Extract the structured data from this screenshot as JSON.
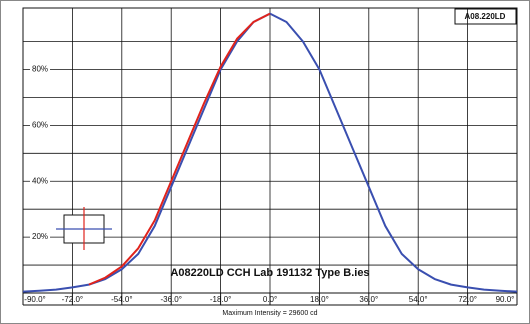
{
  "chart_data": {
    "type": "line",
    "title": "A08220LD CCH Lab 191132 Type B.ies",
    "badge": "A08.220LD",
    "x_label": "Maximum Intensity = 29600 cd",
    "x": [
      -90,
      -84,
      -78,
      -72,
      -66,
      -60,
      -54,
      -48,
      -42,
      -36,
      -30,
      -24,
      -18,
      -12,
      -6,
      0,
      6,
      12,
      18,
      24,
      30,
      36,
      42,
      48,
      54,
      60,
      66,
      72,
      78,
      84,
      90
    ],
    "series": [
      {
        "name": "Horizontal",
        "color": "#3a4fb0",
        "values": [
          0.5,
          0.8,
          1.2,
          2,
          3,
          5,
          8.5,
          14,
          24,
          38,
          52,
          66,
          80,
          90,
          97,
          100,
          97,
          90,
          80,
          66,
          52,
          38,
          24,
          14,
          8.5,
          5,
          3,
          2,
          1.2,
          0.8,
          0.5
        ]
      },
      {
        "name": "Vertical",
        "color": "#e0231c",
        "values": [
          null,
          null,
          null,
          null,
          3,
          5.5,
          9.5,
          16,
          26,
          40,
          54,
          68,
          81,
          91,
          97,
          100,
          null,
          null,
          null,
          null,
          null,
          null,
          null,
          null,
          null,
          null,
          null,
          null,
          null,
          null,
          null
        ]
      }
    ],
    "xlim": [
      -90,
      90
    ],
    "ylim": [
      0,
      102
    ],
    "xticks": [
      {
        "value": -90,
        "label": "-90.0°"
      },
      {
        "value": -72,
        "label": "-72.0°"
      },
      {
        "value": -54,
        "label": "-54.0°"
      },
      {
        "value": -36,
        "label": "-36.0°"
      },
      {
        "value": -18,
        "label": "-18.0°"
      },
      {
        "value": 0,
        "label": "0.0°"
      },
      {
        "value": 18,
        "label": "18.0°"
      },
      {
        "value": 36,
        "label": "36.0°"
      },
      {
        "value": 54,
        "label": "54.0°"
      },
      {
        "value": 72,
        "label": "72.0°"
      },
      {
        "value": 90,
        "label": "90.0°"
      }
    ],
    "yticks": [
      {
        "value": 20,
        "label": "20%"
      },
      {
        "value": 40,
        "label": "40%"
      },
      {
        "value": 60,
        "label": "60%"
      },
      {
        "value": 80,
        "label": "80%"
      }
    ],
    "minor_yticks": [
      10,
      30,
      50,
      70,
      90
    ],
    "grid": true
  }
}
